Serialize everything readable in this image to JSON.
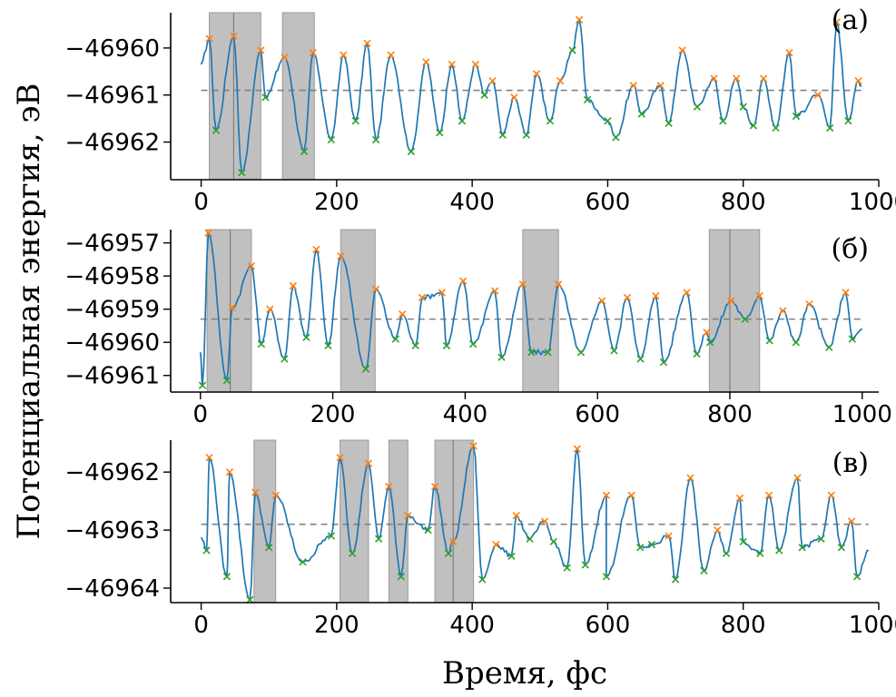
{
  "figure": {
    "ylabel": "Потенциальная энергия, эВ",
    "xlabel": "Время, фс"
  },
  "colors": {
    "line": "#1f77b4",
    "max_marker": "#ff7f0e",
    "min_marker": "#2ca02c",
    "mean_line": "#808080",
    "shade": "#c0c0c0",
    "shade_edge": "#9a9a9a"
  },
  "chart_data": [
    {
      "type": "line",
      "label": "(а)",
      "xlim": [
        -45,
        1000
      ],
      "ylim": [
        -46962.8,
        -46959.25
      ],
      "xticks": [
        0,
        200,
        400,
        600,
        800,
        1000
      ],
      "xtick_labels": [
        "0",
        "200",
        "400",
        "600",
        "800",
        "1000"
      ],
      "yticks": [
        -46962,
        -46961,
        -46960
      ],
      "ytick_labels": [
        "−46962",
        "−46961",
        "−46960"
      ],
      "mean": -46960.9,
      "shaded_regions": [
        [
          12,
          88
        ],
        [
          120,
          167
        ]
      ],
      "shade_dividers": [
        48
      ],
      "x_end": 975,
      "maxima": [
        {
          "x": 12,
          "y": -46959.8
        },
        {
          "x": 48,
          "y": -46959.75
        },
        {
          "x": 88,
          "y": -46960.05
        },
        {
          "x": 123,
          "y": -46960.2
        },
        {
          "x": 165,
          "y": -46960.1
        },
        {
          "x": 210,
          "y": -46960.15
        },
        {
          "x": 245,
          "y": -46959.9
        },
        {
          "x": 280,
          "y": -46960.15
        },
        {
          "x": 332,
          "y": -46960.3
        },
        {
          "x": 370,
          "y": -46960.35
        },
        {
          "x": 405,
          "y": -46960.35
        },
        {
          "x": 430,
          "y": -46960.7
        },
        {
          "x": 462,
          "y": -46961.05
        },
        {
          "x": 495,
          "y": -46960.55
        },
        {
          "x": 530,
          "y": -46960.7
        },
        {
          "x": 558,
          "y": -46959.4
        },
        {
          "x": 638,
          "y": -46960.8
        },
        {
          "x": 678,
          "y": -46960.8
        },
        {
          "x": 710,
          "y": -46960.05
        },
        {
          "x": 757,
          "y": -46960.65
        },
        {
          "x": 790,
          "y": -46960.65
        },
        {
          "x": 830,
          "y": -46960.65
        },
        {
          "x": 868,
          "y": -46960.1
        },
        {
          "x": 910,
          "y": -46961.0
        },
        {
          "x": 938,
          "y": -46959.45
        },
        {
          "x": 970,
          "y": -46960.7
        }
      ],
      "minima": [
        {
          "x": 22,
          "y": -46961.75
        },
        {
          "x": 60,
          "y": -46962.65
        },
        {
          "x": 95,
          "y": -46961.05
        },
        {
          "x": 152,
          "y": -46962.2
        },
        {
          "x": 192,
          "y": -46961.95
        },
        {
          "x": 228,
          "y": -46961.55
        },
        {
          "x": 258,
          "y": -46961.95
        },
        {
          "x": 310,
          "y": -46962.2
        },
        {
          "x": 352,
          "y": -46961.8
        },
        {
          "x": 385,
          "y": -46961.55
        },
        {
          "x": 418,
          "y": -46961.0
        },
        {
          "x": 445,
          "y": -46961.85
        },
        {
          "x": 480,
          "y": -46961.85
        },
        {
          "x": 515,
          "y": -46961.55
        },
        {
          "x": 548,
          "y": -46960.05
        },
        {
          "x": 570,
          "y": -46961.1
        },
        {
          "x": 600,
          "y": -46961.55
        },
        {
          "x": 612,
          "y": -46961.9
        },
        {
          "x": 650,
          "y": -46961.4
        },
        {
          "x": 690,
          "y": -46961.6
        },
        {
          "x": 732,
          "y": -46961.25
        },
        {
          "x": 770,
          "y": -46961.55
        },
        {
          "x": 800,
          "y": -46961.25
        },
        {
          "x": 815,
          "y": -46961.65
        },
        {
          "x": 848,
          "y": -46961.7
        },
        {
          "x": 878,
          "y": -46961.45
        },
        {
          "x": 928,
          "y": -46961.7
        },
        {
          "x": 955,
          "y": -46961.55
        }
      ]
    },
    {
      "type": "line",
      "label": "(б)",
      "xlim": [
        -45,
        1025
      ],
      "ylim": [
        -46961.5,
        -46956.6
      ],
      "xticks": [
        0,
        200,
        400,
        600,
        800,
        1000
      ],
      "xtick_labels": [
        "0",
        "200",
        "400",
        "600",
        "800",
        "1000"
      ],
      "yticks": [
        -46961,
        -46960,
        -46959,
        -46958,
        -46957
      ],
      "ytick_labels": [
        "−46961",
        "−46960",
        "−46959",
        "−46958",
        "−46957"
      ],
      "mean": -46959.3,
      "shaded_regions": [
        [
          10,
          77
        ],
        [
          212,
          264
        ],
        [
          487,
          541
        ],
        [
          769,
          845
        ]
      ],
      "shade_dividers": [
        45,
        800
      ],
      "x_end": 1000,
      "maxima": [
        {
          "x": 12,
          "y": -46956.7
        },
        {
          "x": 48,
          "y": -46958.95
        },
        {
          "x": 77,
          "y": -46957.7
        },
        {
          "x": 105,
          "y": -46959.0
        },
        {
          "x": 140,
          "y": -46958.3
        },
        {
          "x": 175,
          "y": -46957.2
        },
        {
          "x": 212,
          "y": -46957.4
        },
        {
          "x": 265,
          "y": -46958.4
        },
        {
          "x": 305,
          "y": -46959.15
        },
        {
          "x": 335,
          "y": -46958.65
        },
        {
          "x": 365,
          "y": -46958.5
        },
        {
          "x": 397,
          "y": -46958.15
        },
        {
          "x": 445,
          "y": -46958.45
        },
        {
          "x": 487,
          "y": -46958.25
        },
        {
          "x": 541,
          "y": -46958.25
        },
        {
          "x": 607,
          "y": -46958.75
        },
        {
          "x": 645,
          "y": -46958.65
        },
        {
          "x": 688,
          "y": -46958.6
        },
        {
          "x": 735,
          "y": -46958.5
        },
        {
          "x": 765,
          "y": -46959.7
        },
        {
          "x": 802,
          "y": -46958.75
        },
        {
          "x": 845,
          "y": -46958.6
        },
        {
          "x": 880,
          "y": -46959.05
        },
        {
          "x": 920,
          "y": -46958.85
        },
        {
          "x": 975,
          "y": -46958.5
        }
      ],
      "minima": [
        {
          "x": 3,
          "y": -46961.3
        },
        {
          "x": 40,
          "y": -46961.15
        },
        {
          "x": 92,
          "y": -46960.05
        },
        {
          "x": 127,
          "y": -46960.5
        },
        {
          "x": 160,
          "y": -46959.85
        },
        {
          "x": 193,
          "y": -46960.1
        },
        {
          "x": 250,
          "y": -46960.8
        },
        {
          "x": 295,
          "y": -46959.9
        },
        {
          "x": 325,
          "y": -46960.1
        },
        {
          "x": 372,
          "y": -46960.1
        },
        {
          "x": 412,
          "y": -46960.05
        },
        {
          "x": 455,
          "y": -46960.45
        },
        {
          "x": 500,
          "y": -46960.3
        },
        {
          "x": 525,
          "y": -46960.3
        },
        {
          "x": 575,
          "y": -46960.3
        },
        {
          "x": 625,
          "y": -46960.25
        },
        {
          "x": 665,
          "y": -46960.5
        },
        {
          "x": 700,
          "y": -46960.6
        },
        {
          "x": 750,
          "y": -46960.35
        },
        {
          "x": 770,
          "y": -46960.0
        },
        {
          "x": 823,
          "y": -46959.3
        },
        {
          "x": 860,
          "y": -46959.95
        },
        {
          "x": 900,
          "y": -46960.0
        },
        {
          "x": 950,
          "y": -46960.15
        },
        {
          "x": 985,
          "y": -46959.9
        }
      ]
    },
    {
      "type": "line",
      "label": "(в)",
      "xlim": [
        -45,
        1000
      ],
      "ylim": [
        -46964.25,
        -46961.45
      ],
      "xticks": [
        0,
        200,
        400,
        600,
        800,
        1000
      ],
      "xtick_labels": [
        "0",
        "200",
        "400",
        "600",
        "800",
        "1000"
      ],
      "yticks": [
        -46964,
        -46963,
        -46962
      ],
      "ytick_labels": [
        "−46964",
        "−46963",
        "−46962"
      ],
      "mean": -46962.9,
      "shaded_regions": [
        [
          78,
          110
        ],
        [
          205,
          247
        ],
        [
          277,
          305
        ],
        [
          345,
          402
        ]
      ],
      "shade_dividers": [
        372
      ],
      "x_end": 985,
      "maxima": [
        {
          "x": 12,
          "y": -46961.75
        },
        {
          "x": 42,
          "y": -46962.0
        },
        {
          "x": 80,
          "y": -46962.35
        },
        {
          "x": 110,
          "y": -46962.4
        },
        {
          "x": 205,
          "y": -46961.75
        },
        {
          "x": 247,
          "y": -46961.85
        },
        {
          "x": 277,
          "y": -46962.25
        },
        {
          "x": 305,
          "y": -46962.75
        },
        {
          "x": 345,
          "y": -46962.25
        },
        {
          "x": 372,
          "y": -46963.2
        },
        {
          "x": 402,
          "y": -46961.55
        },
        {
          "x": 435,
          "y": -46963.25
        },
        {
          "x": 465,
          "y": -46962.75
        },
        {
          "x": 507,
          "y": -46962.85
        },
        {
          "x": 555,
          "y": -46961.6
        },
        {
          "x": 598,
          "y": -46962.4
        },
        {
          "x": 635,
          "y": -46962.4
        },
        {
          "x": 690,
          "y": -46963.1
        },
        {
          "x": 722,
          "y": -46962.1
        },
        {
          "x": 762,
          "y": -46963.0
        },
        {
          "x": 795,
          "y": -46962.45
        },
        {
          "x": 838,
          "y": -46962.4
        },
        {
          "x": 880,
          "y": -46962.1
        },
        {
          "x": 930,
          "y": -46962.4
        },
        {
          "x": 960,
          "y": -46962.85
        }
      ],
      "minima": [
        {
          "x": 8,
          "y": -46963.35
        },
        {
          "x": 38,
          "y": -46963.8
        },
        {
          "x": 72,
          "y": -46964.2
        },
        {
          "x": 100,
          "y": -46963.3
        },
        {
          "x": 150,
          "y": -46963.55
        },
        {
          "x": 192,
          "y": -46963.1
        },
        {
          "x": 223,
          "y": -46963.4
        },
        {
          "x": 262,
          "y": -46963.15
        },
        {
          "x": 295,
          "y": -46963.8
        },
        {
          "x": 335,
          "y": -46963.0
        },
        {
          "x": 365,
          "y": -46963.4
        },
        {
          "x": 415,
          "y": -46963.85
        },
        {
          "x": 458,
          "y": -46963.45
        },
        {
          "x": 485,
          "y": -46963.15
        },
        {
          "x": 520,
          "y": -46963.2
        },
        {
          "x": 540,
          "y": -46963.65
        },
        {
          "x": 567,
          "y": -46963.6
        },
        {
          "x": 598,
          "y": -46963.8
        },
        {
          "x": 648,
          "y": -46963.3
        },
        {
          "x": 665,
          "y": -46963.25
        },
        {
          "x": 700,
          "y": -46963.85
        },
        {
          "x": 742,
          "y": -46963.7
        },
        {
          "x": 775,
          "y": -46963.4
        },
        {
          "x": 800,
          "y": -46963.2
        },
        {
          "x": 825,
          "y": -46963.4
        },
        {
          "x": 853,
          "y": -46963.35
        },
        {
          "x": 887,
          "y": -46963.3
        },
        {
          "x": 915,
          "y": -46963.15
        },
        {
          "x": 945,
          "y": -46963.3
        },
        {
          "x": 968,
          "y": -46963.8
        }
      ]
    }
  ]
}
